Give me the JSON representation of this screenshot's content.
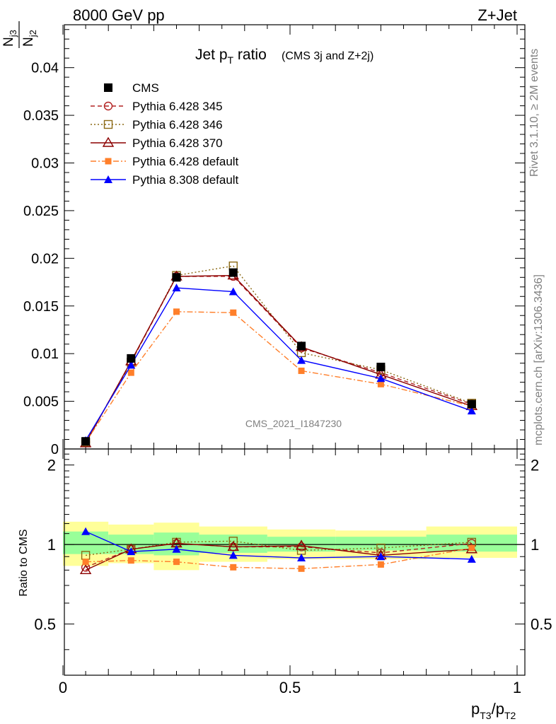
{
  "header": {
    "left": "8000 GeV pp",
    "right": "Z+Jet"
  },
  "side": {
    "rivet": "Rivet 3.1.10, ≥ 2M events",
    "mcplots": "mcplots.cern.ch [arXiv:1306.3436]"
  },
  "chart_data": [
    {
      "type": "line",
      "title": "Jet p",
      "title_sub": "T",
      "title_tail": " ratio",
      "subtitle": "(CMS 3j and Z+2j)",
      "watermark": "CMS_2021_I1847230",
      "ylabel_num": "N",
      "ylabel_num_sub": "j3",
      "ylabel_den": "N",
      "ylabel_den_sub": "j2",
      "xlim": [
        0,
        1
      ],
      "ylim": [
        0,
        0.0445
      ],
      "yticks": [
        0,
        0.005,
        0.01,
        0.015,
        0.02,
        0.025,
        0.03,
        0.035,
        0.04
      ],
      "ytick_labels": [
        "0",
        "0.005",
        "0.01",
        "0.015",
        "0.02",
        "0.025",
        "0.03",
        "0.035",
        "0.04"
      ],
      "legend_position": "top-left",
      "x": [
        0.05,
        0.15,
        0.25,
        0.375,
        0.525,
        0.7,
        0.9
      ],
      "series": [
        {
          "name": "CMS",
          "color": "#000000",
          "marker": "square-filled",
          "line": "none",
          "values": [
            0.0008,
            0.0095,
            0.018,
            0.0185,
            0.0108,
            0.0086,
            0.0047
          ]
        },
        {
          "name": "Pythia 6.428 345",
          "color": "#b22222",
          "marker": "circle-open",
          "line": "dashed",
          "values": [
            0.0007,
            0.0091,
            0.0181,
            0.0181,
            0.0106,
            0.008,
            0.0047
          ]
        },
        {
          "name": "Pythia 6.428 346",
          "color": "#8b6914",
          "marker": "square-open",
          "line": "dotted",
          "values": [
            0.0007,
            0.0091,
            0.0182,
            0.0192,
            0.0101,
            0.0083,
            0.0048
          ]
        },
        {
          "name": "Pythia 6.428 370",
          "color": "#8b0000",
          "marker": "triangle-open",
          "line": "solid",
          "values": [
            0.0006,
            0.0092,
            0.0181,
            0.0182,
            0.0107,
            0.0078,
            0.0045
          ]
        },
        {
          "name": "Pythia 6.428 default",
          "color": "#ff7f2a",
          "marker": "square-filled-small",
          "line": "dashdot",
          "values": [
            0.0007,
            0.008,
            0.0144,
            0.0143,
            0.0082,
            0.0068,
            0.0045
          ]
        },
        {
          "name": "Pythia 8.308 default",
          "color": "#0000ff",
          "marker": "triangle-filled",
          "line": "solid",
          "values": [
            0.0009,
            0.0088,
            0.0169,
            0.0165,
            0.0093,
            0.0074,
            0.004
          ]
        }
      ]
    },
    {
      "type": "line",
      "ylabel": "Ratio to CMS",
      "xlabel_main": "p",
      "xlabel_sub1": "T3",
      "xlabel_mid": "/p",
      "xlabel_sub2": "T2",
      "xlim": [
        0,
        1
      ],
      "ylim": [
        0.32,
        2.3
      ],
      "yticks": [
        0.5,
        1,
        2
      ],
      "ytick_labels": [
        "0.5",
        "1",
        "2"
      ],
      "xticks": [
        0,
        0.5,
        1
      ],
      "xtick_labels": [
        "0",
        "0.5",
        "1"
      ],
      "bins": [
        [
          0,
          0.1
        ],
        [
          0.1,
          0.2
        ],
        [
          0.2,
          0.3
        ],
        [
          0.3,
          0.45
        ],
        [
          0.45,
          0.6
        ],
        [
          0.6,
          0.8
        ],
        [
          0.8,
          1.0
        ]
      ],
      "band_yellow": [
        [
          0.83,
          1.22
        ],
        [
          0.85,
          1.19
        ],
        [
          0.8,
          1.21
        ],
        [
          0.86,
          1.17
        ],
        [
          0.88,
          1.14
        ],
        [
          0.88,
          1.13
        ],
        [
          0.89,
          1.17
        ]
      ],
      "band_green": [
        [
          0.92,
          1.12
        ],
        [
          0.92,
          1.09
        ],
        [
          0.91,
          1.11
        ],
        [
          0.93,
          1.09
        ],
        [
          0.94,
          1.07
        ],
        [
          0.95,
          1.07
        ],
        [
          0.94,
          1.09
        ]
      ],
      "x": [
        0.05,
        0.15,
        0.25,
        0.375,
        0.525,
        0.7,
        0.9
      ],
      "series": [
        {
          "name": "Pythia 6.428 345",
          "color": "#b22222",
          "marker": "circle-open",
          "line": "dashed",
          "values": [
            0.82,
            0.96,
            1.01,
            0.98,
            0.98,
            0.93,
            1.01
          ]
        },
        {
          "name": "Pythia 6.428 346",
          "color": "#8b6914",
          "marker": "square-open",
          "line": "dotted",
          "values": [
            0.91,
            0.96,
            1.02,
            1.03,
            0.95,
            0.97,
            1.02
          ]
        },
        {
          "name": "Pythia 6.428 370",
          "color": "#8b0000",
          "marker": "triangle-open",
          "line": "solid",
          "values": [
            0.8,
            0.96,
            1.01,
            0.98,
            0.99,
            0.91,
            0.96
          ]
        },
        {
          "name": "Pythia 6.428 default",
          "color": "#ff7f2a",
          "marker": "square-filled-small",
          "line": "dashdot",
          "values": [
            0.86,
            0.87,
            0.86,
            0.82,
            0.81,
            0.84,
            0.97
          ]
        },
        {
          "name": "Pythia 8.308 default",
          "color": "#0000ff",
          "marker": "triangle-filled",
          "line": "solid",
          "values": [
            1.12,
            0.94,
            0.96,
            0.91,
            0.89,
            0.9,
            0.88
          ]
        }
      ]
    }
  ]
}
